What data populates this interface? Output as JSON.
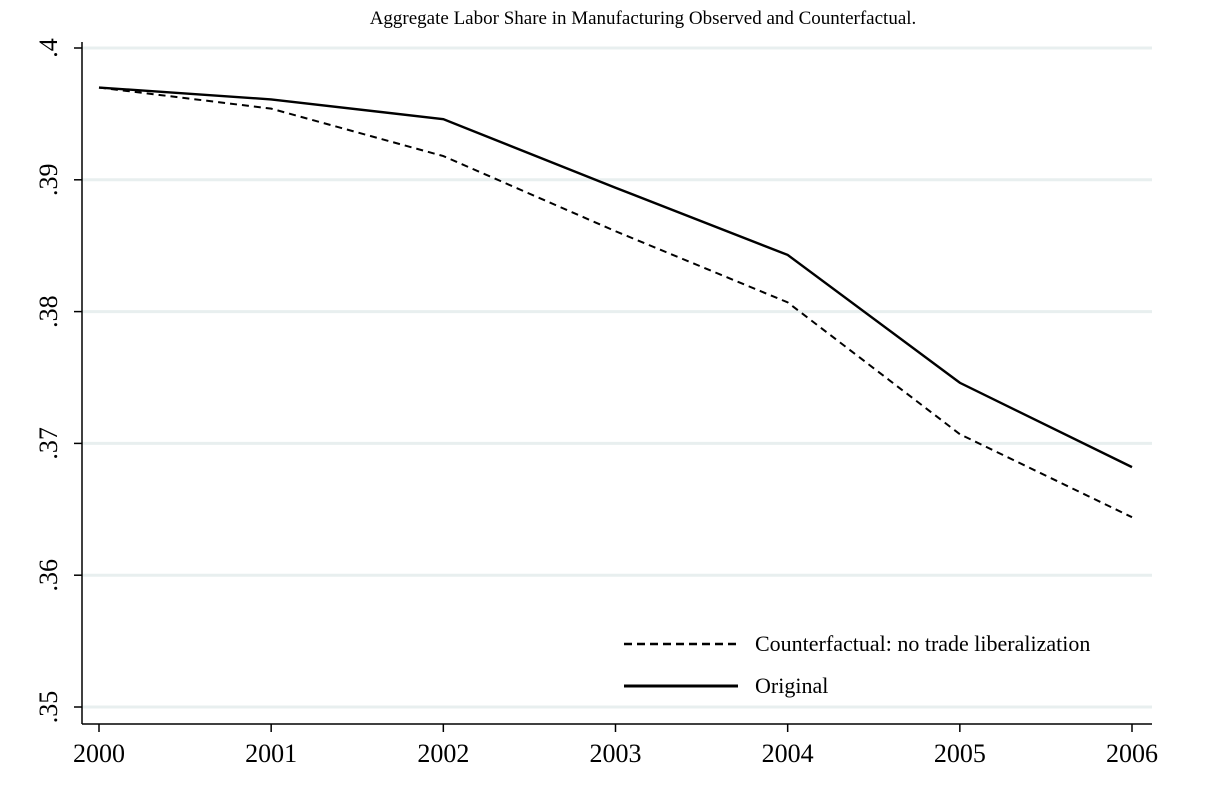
{
  "chart_data": {
    "type": "line",
    "title": "Aggregate Labor Share in Manufacturing Observed and Counterfactual.",
    "xlabel": "",
    "ylabel": "",
    "x": [
      2000,
      2001,
      2002,
      2003,
      2004,
      2005,
      2006
    ],
    "x_tick_labels": [
      "2000",
      "2001",
      "2002",
      "2003",
      "2004",
      "2005",
      "2006"
    ],
    "y_tick_values": [
      0.35,
      0.36,
      0.37,
      0.38,
      0.39,
      0.4
    ],
    "y_tick_labels": [
      ".35",
      ".36",
      ".37",
      ".38",
      ".39",
      ".4"
    ],
    "ylim": [
      0.35,
      0.4
    ],
    "xlim": [
      2000,
      2006
    ],
    "grid": true,
    "legend_position": "bottom-right",
    "series": [
      {
        "name": "Counterfactual: no trade liberalization",
        "style": "dashed",
        "color": "#000000",
        "values": [
          0.397,
          0.3954,
          0.3918,
          0.3861,
          0.3807,
          0.3707,
          0.3644
        ]
      },
      {
        "name": "Original",
        "style": "solid",
        "color": "#000000",
        "values": [
          0.397,
          0.3961,
          0.3946,
          0.3894,
          0.3843,
          0.3746,
          0.3682
        ]
      }
    ],
    "colors": {
      "gridline": "#e8efef",
      "axis": "#000000"
    }
  }
}
